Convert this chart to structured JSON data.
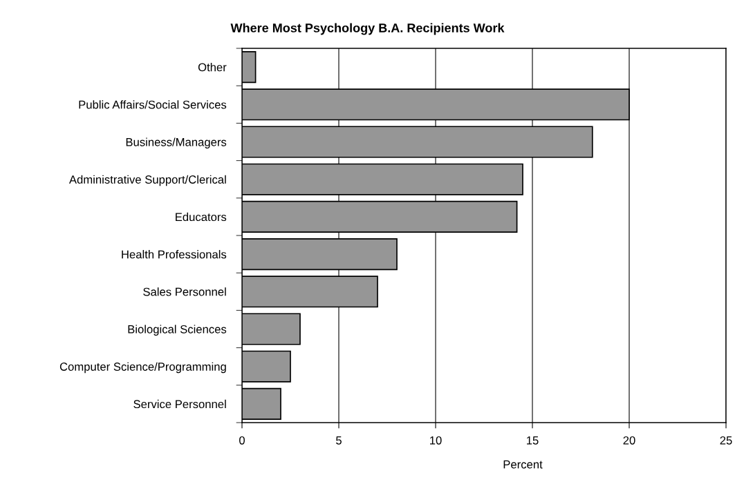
{
  "chart_data": {
    "type": "bar",
    "orientation": "horizontal",
    "title": "Where Most Psychology B.A. Recipients Work",
    "xlabel": "Percent",
    "categories": [
      "Other",
      "Public Affairs/Social Services",
      "Business/Managers",
      "Administrative Support/Clerical",
      "Educators",
      "Health Professionals",
      "Sales Personnel",
      "Biological Sciences",
      "Computer Science/Programming",
      "Service Personnel"
    ],
    "values": [
      0.7,
      20,
      18.1,
      14.5,
      14.2,
      8,
      7,
      3,
      2.5,
      2
    ],
    "color": "#969696",
    "xlim": [
      0,
      25
    ],
    "xticks": [
      0,
      5,
      10,
      15,
      20,
      25
    ],
    "grid": "x",
    "legend": false
  }
}
